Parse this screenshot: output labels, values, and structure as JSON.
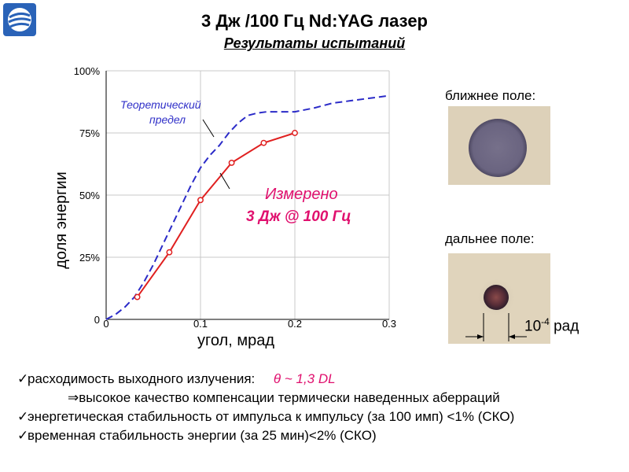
{
  "header": {
    "title": "3 Дж /100 Гц Nd:YAG лазер",
    "subtitle": "Результаты испытаний"
  },
  "chart_data": {
    "type": "line",
    "xlabel": "угол, мрад",
    "ylabel": "доля энергии",
    "xlim": [
      0,
      0.3
    ],
    "ylim": [
      0,
      1.0
    ],
    "x_ticks": [
      "0",
      "0.1",
      "0.2",
      "0.3"
    ],
    "y_ticks": [
      "0",
      "25%",
      "50%",
      "75%",
      "100%"
    ],
    "grid": true,
    "series": [
      {
        "name": "Теоретический предел",
        "style": "dashed",
        "color": "#2b2bc8",
        "x": [
          0.0,
          0.01,
          0.02,
          0.03,
          0.04,
          0.05,
          0.06,
          0.07,
          0.08,
          0.09,
          0.1,
          0.11,
          0.12,
          0.13,
          0.14,
          0.15,
          0.16,
          0.17,
          0.18,
          0.19,
          0.2,
          0.22,
          0.24,
          0.26,
          0.28,
          0.3
        ],
        "y": [
          0.0,
          0.02,
          0.05,
          0.09,
          0.15,
          0.22,
          0.3,
          0.38,
          0.46,
          0.54,
          0.61,
          0.66,
          0.7,
          0.75,
          0.79,
          0.82,
          0.83,
          0.835,
          0.835,
          0.835,
          0.835,
          0.85,
          0.87,
          0.88,
          0.89,
          0.9
        ]
      },
      {
        "name": "Измерено 3 Дж @ 100 Гц",
        "style": "solid-markers",
        "color": "#e02020",
        "x": [
          0.033,
          0.067,
          0.1,
          0.133,
          0.167,
          0.2
        ],
        "y": [
          0.09,
          0.27,
          0.48,
          0.63,
          0.71,
          0.75
        ]
      }
    ],
    "annotations": {
      "theory_line1": "Теоретический",
      "theory_line2": "предел",
      "measured_line1": "Измерено",
      "measured_line2": "3 Дж @ 100 Гц"
    }
  },
  "fields": {
    "near_label": "ближнее поле:",
    "far_label": "дальнее поле:",
    "divergence_base": "10",
    "divergence_exp": "-4",
    "divergence_unit": "рад"
  },
  "bullets": {
    "b1_text": "расходимость выходного излучения:",
    "b1_value": "θ ~ 1,3 DL",
    "b2_arrow": "⇒",
    "b2_text": "высокое качество компенсации термически наведенных аберраций",
    "b3_text": "энергетическая стабильность от импульса к импульсу (за 100 имп) <1% (СКО)",
    "b4_text": "временная стабильность энергии (за 25 мин)<2% (СКО)",
    "check": "✓"
  },
  "colors": {
    "theory": "#2b2bc8",
    "measured": "#e02020",
    "accent": "#e0106e"
  }
}
